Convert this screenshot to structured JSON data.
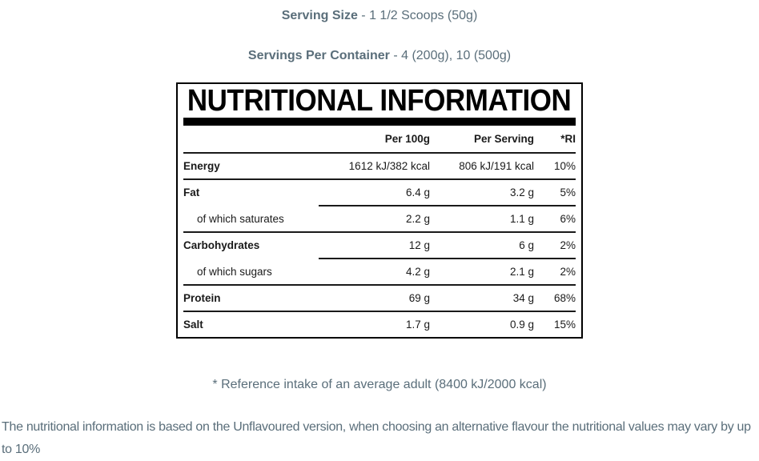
{
  "colors": {
    "slate_text": "#5a6e7a",
    "table_text": "#1a1a1a",
    "table_border": "#000000",
    "background": "#ffffff"
  },
  "header": {
    "serving_size": {
      "label": "Serving Size",
      "value": " - 1 1/2 Scoops (50g)"
    },
    "servings_per_container": {
      "label": "Servings Per Container",
      "value": " - 4 (200g), 10 (500g)"
    }
  },
  "table": {
    "title": "NUTRITIONAL INFORMATION",
    "columns": [
      "Per 100g",
      "Per Serving",
      "*RI"
    ],
    "rows": [
      {
        "label": "Energy",
        "per_100g": "1612 kJ/382 kcal",
        "per_serving": "806 kJ/191 kcal",
        "ri": "10%",
        "sub": false,
        "divider": "full"
      },
      {
        "label": "Fat",
        "per_100g": "6.4 g",
        "per_serving": "3.2 g",
        "ri": "5%",
        "sub": false,
        "divider": "partial"
      },
      {
        "label": "of which saturates",
        "per_100g": "2.2 g",
        "per_serving": "1.1 g",
        "ri": "6%",
        "sub": true,
        "divider": "full"
      },
      {
        "label": "Carbohydrates",
        "per_100g": "12 g",
        "per_serving": "6 g",
        "ri": "2%",
        "sub": false,
        "divider": "partial"
      },
      {
        "label": "of which sugars",
        "per_100g": "4.2 g",
        "per_serving": "2.1 g",
        "ri": "2%",
        "sub": true,
        "divider": "full"
      },
      {
        "label": "Protein",
        "per_100g": "69 g",
        "per_serving": "34 g",
        "ri": "68%",
        "sub": false,
        "divider": "full"
      },
      {
        "label": "Salt",
        "per_100g": "1.7 g",
        "per_serving": "0.9 g",
        "ri": "15%",
        "sub": false,
        "divider": "none"
      }
    ]
  },
  "footnotes": {
    "reference": "* Reference intake of an average adult (8400 kJ/2000 kcal)",
    "disclaimer": "The nutritional information is based on the Unflavoured version, when choosing an alternative flavour the nutritional values may vary by up to 10%"
  }
}
